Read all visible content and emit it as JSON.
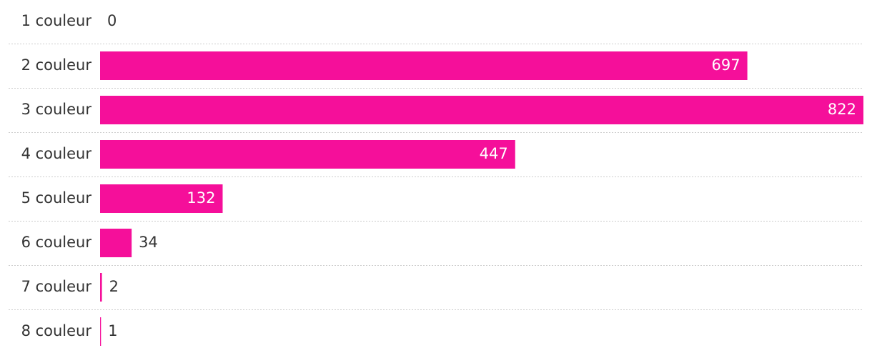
{
  "chart_data": {
    "type": "bar",
    "orientation": "horizontal",
    "categories": [
      "1 couleur",
      "2 couleur",
      "3 couleur",
      "4 couleur",
      "5 couleur",
      "6 couleur",
      "7 couleur",
      "8 couleur"
    ],
    "values": [
      0,
      697,
      822,
      447,
      132,
      34,
      2,
      1
    ],
    "color": "#f50f9a"
  }
}
